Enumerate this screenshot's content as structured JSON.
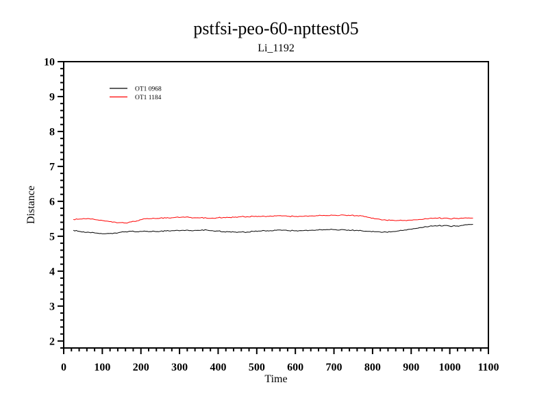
{
  "chart_data": {
    "type": "line",
    "title": "pstfsi-peo-60-npttest05",
    "subtitle": "Li_1192",
    "xlabel": "Time",
    "ylabel": "Distance",
    "xlim": [
      0,
      1100
    ],
    "ylim": [
      1.8,
      10
    ],
    "x_major_step": 100,
    "x_minor_step": 20,
    "y_major_step": 1,
    "y_minor_step": 0.2,
    "y_label_start": 2,
    "grid": false,
    "legend_position": "upper-left-inside",
    "frame_color": "#000000",
    "background_color": "#ffffff",
    "x": [
      25,
      40,
      55,
      70,
      85,
      100,
      115,
      130,
      145,
      160,
      175,
      190,
      205,
      220,
      235,
      250,
      265,
      280,
      295,
      310,
      325,
      340,
      355,
      370,
      385,
      400,
      415,
      430,
      445,
      460,
      475,
      490,
      505,
      520,
      535,
      550,
      565,
      580,
      595,
      610,
      625,
      640,
      655,
      670,
      685,
      700,
      715,
      730,
      745,
      760,
      775,
      790,
      805,
      820,
      835,
      850,
      865,
      880,
      895,
      910,
      925,
      940,
      955,
      970,
      985,
      1000,
      1015,
      1030,
      1045,
      1060
    ],
    "series": [
      {
        "name": "OT1 0968",
        "color": "#000000",
        "values": [
          5.17,
          5.14,
          5.11,
          5.1,
          5.09,
          5.07,
          5.08,
          5.09,
          5.11,
          5.13,
          5.14,
          5.13,
          5.14,
          5.13,
          5.14,
          5.14,
          5.15,
          5.16,
          5.17,
          5.17,
          5.16,
          5.17,
          5.17,
          5.18,
          5.16,
          5.15,
          5.13,
          5.13,
          5.12,
          5.12,
          5.12,
          5.14,
          5.15,
          5.16,
          5.16,
          5.17,
          5.17,
          5.16,
          5.16,
          5.16,
          5.17,
          5.17,
          5.18,
          5.18,
          5.19,
          5.19,
          5.18,
          5.18,
          5.17,
          5.17,
          5.15,
          5.14,
          5.13,
          5.12,
          5.12,
          5.13,
          5.15,
          5.17,
          5.2,
          5.22,
          5.25,
          5.27,
          5.29,
          5.3,
          5.31,
          5.29,
          5.29,
          5.31,
          5.33,
          5.34
        ]
      },
      {
        "name": "OT1 1184",
        "color": "#ff0000",
        "values": [
          5.48,
          5.49,
          5.5,
          5.49,
          5.47,
          5.45,
          5.43,
          5.41,
          5.39,
          5.38,
          5.41,
          5.44,
          5.49,
          5.5,
          5.51,
          5.52,
          5.52,
          5.53,
          5.55,
          5.55,
          5.54,
          5.53,
          5.53,
          5.52,
          5.52,
          5.53,
          5.54,
          5.54,
          5.55,
          5.56,
          5.56,
          5.57,
          5.57,
          5.57,
          5.58,
          5.58,
          5.58,
          5.57,
          5.57,
          5.57,
          5.58,
          5.58,
          5.59,
          5.59,
          5.59,
          5.6,
          5.6,
          5.6,
          5.6,
          5.59,
          5.58,
          5.54,
          5.5,
          5.48,
          5.46,
          5.46,
          5.45,
          5.45,
          5.46,
          5.47,
          5.48,
          5.5,
          5.51,
          5.52,
          5.52,
          5.5,
          5.51,
          5.52,
          5.52,
          5.52
        ]
      }
    ]
  }
}
